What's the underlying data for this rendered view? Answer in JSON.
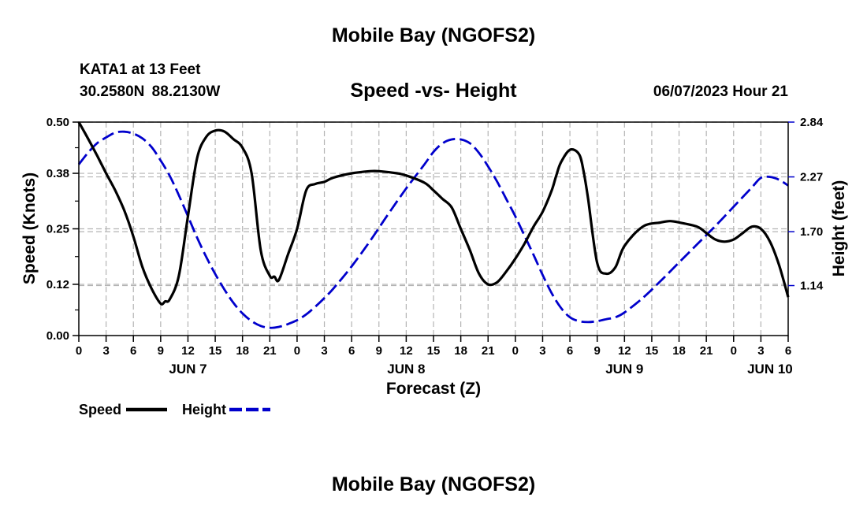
{
  "header": {
    "title": "Mobile Bay (NGOFS2)",
    "station": "KATA1 at 13 Feet",
    "latlon": "30.2580N  88.2130W",
    "datetime": "06/07/2023 Hour 21",
    "footer_title": "Mobile Bay (NGOFS2)"
  },
  "chart_data": {
    "type": "line",
    "title": "Speed -vs- Height",
    "xlabel": "Forecast (Z)",
    "ylabel": "Speed (Knots)",
    "y2label": "Height (feet)",
    "x_start_hour": 0,
    "x_end_hour": 78,
    "x_ticks": [
      {
        "hour": 0,
        "label": "0"
      },
      {
        "hour": 3,
        "label": "3"
      },
      {
        "hour": 6,
        "label": "6"
      },
      {
        "hour": 9,
        "label": "9"
      },
      {
        "hour": 12,
        "label": "12"
      },
      {
        "hour": 15,
        "label": "15"
      },
      {
        "hour": 18,
        "label": "18"
      },
      {
        "hour": 21,
        "label": "21"
      },
      {
        "hour": 24,
        "label": "0"
      },
      {
        "hour": 27,
        "label": "3"
      },
      {
        "hour": 30,
        "label": "6"
      },
      {
        "hour": 33,
        "label": "9"
      },
      {
        "hour": 36,
        "label": "12"
      },
      {
        "hour": 39,
        "label": "15"
      },
      {
        "hour": 42,
        "label": "18"
      },
      {
        "hour": 45,
        "label": "21"
      },
      {
        "hour": 48,
        "label": "0"
      },
      {
        "hour": 51,
        "label": "3"
      },
      {
        "hour": 54,
        "label": "6"
      },
      {
        "hour": 57,
        "label": "9"
      },
      {
        "hour": 60,
        "label": "12"
      },
      {
        "hour": 63,
        "label": "15"
      },
      {
        "hour": 66,
        "label": "18"
      },
      {
        "hour": 69,
        "label": "21"
      },
      {
        "hour": 72,
        "label": "0"
      },
      {
        "hour": 75,
        "label": "3"
      },
      {
        "hour": 78,
        "label": "6"
      }
    ],
    "date_labels": [
      {
        "hour": 12,
        "label": "JUN 7"
      },
      {
        "hour": 36,
        "label": "JUN 8"
      },
      {
        "hour": 60,
        "label": "JUN 9"
      },
      {
        "hour": 76,
        "label": "JUN 10"
      }
    ],
    "y_ticks": [
      0.0,
      0.12,
      0.25,
      0.38,
      0.5
    ],
    "y_tick_labels": [
      "0.00",
      "0.12",
      "0.25",
      "0.38",
      "0.50"
    ],
    "ylim": [
      0,
      0.5
    ],
    "y2_ticks": [
      1.14,
      1.7,
      2.27,
      2.84
    ],
    "y2_tick_labels": [
      "1.14",
      "1.70",
      "2.27",
      "2.84"
    ],
    "y2lim": [
      0.62,
      2.84
    ],
    "grid": true,
    "legend_position": "bottom-left",
    "series": [
      {
        "name": "Speed",
        "axis": "left",
        "color": "#000000",
        "style": "solid",
        "x": [
          0,
          1,
          2,
          3,
          4,
          5,
          6,
          7,
          8,
          9,
          9.5,
          10,
          11,
          12,
          13,
          14,
          15,
          16,
          17,
          18,
          19,
          20,
          21,
          21.5,
          22,
          23,
          24,
          25,
          26,
          27,
          28,
          30,
          32,
          33,
          35,
          36,
          38,
          39,
          40,
          41,
          42,
          43,
          44,
          45,
          46,
          47,
          48,
          49,
          50,
          51,
          52,
          52.5,
          53,
          54,
          55,
          55.5,
          56,
          57,
          58,
          59,
          60,
          62,
          64,
          65,
          66,
          68,
          69,
          70,
          71,
          72,
          73,
          74,
          75,
          76,
          77,
          78
        ],
        "values": [
          0.5,
          0.462,
          0.422,
          0.38,
          0.34,
          0.293,
          0.232,
          0.16,
          0.11,
          0.075,
          0.08,
          0.085,
          0.14,
          0.28,
          0.415,
          0.465,
          0.48,
          0.478,
          0.46,
          0.44,
          0.38,
          0.2,
          0.14,
          0.138,
          0.13,
          0.19,
          0.25,
          0.34,
          0.355,
          0.36,
          0.37,
          0.38,
          0.385,
          0.385,
          0.38,
          0.375,
          0.358,
          0.34,
          0.32,
          0.3,
          0.25,
          0.2,
          0.145,
          0.12,
          0.125,
          0.15,
          0.18,
          0.215,
          0.255,
          0.29,
          0.34,
          0.375,
          0.405,
          0.435,
          0.425,
          0.385,
          0.32,
          0.17,
          0.145,
          0.16,
          0.21,
          0.255,
          0.265,
          0.268,
          0.265,
          0.255,
          0.24,
          0.225,
          0.22,
          0.225,
          0.24,
          0.255,
          0.25,
          0.22,
          0.165,
          0.09
        ]
      },
      {
        "name": "Height",
        "axis": "right",
        "color": "#0000cc",
        "style": "dashed",
        "x": [
          0,
          1,
          2,
          3,
          4,
          5,
          6,
          7,
          8,
          9,
          10,
          11,
          12,
          13,
          14,
          15,
          16,
          17,
          18,
          19,
          20,
          21,
          22,
          23,
          24,
          25,
          26,
          27,
          28,
          30,
          32,
          34,
          36,
          38,
          39,
          40,
          41,
          42,
          43,
          44,
          45,
          46,
          47,
          48,
          49,
          50,
          51,
          52,
          53,
          54,
          55,
          56,
          57,
          58,
          59,
          60,
          62,
          64,
          66,
          68,
          70,
          72,
          74,
          75,
          76,
          77,
          78
        ],
        "values": [
          2.4,
          2.52,
          2.62,
          2.68,
          2.73,
          2.74,
          2.72,
          2.67,
          2.58,
          2.44,
          2.28,
          2.08,
          1.86,
          1.64,
          1.44,
          1.26,
          1.1,
          0.96,
          0.85,
          0.77,
          0.72,
          0.7,
          0.71,
          0.74,
          0.78,
          0.84,
          0.92,
          1.01,
          1.11,
          1.34,
          1.6,
          1.88,
          2.15,
          2.4,
          2.53,
          2.62,
          2.66,
          2.66,
          2.62,
          2.52,
          2.38,
          2.22,
          2.04,
          1.86,
          1.66,
          1.46,
          1.25,
          1.06,
          0.91,
          0.81,
          0.77,
          0.76,
          0.77,
          0.79,
          0.81,
          0.86,
          1.01,
          1.19,
          1.38,
          1.57,
          1.76,
          1.96,
          2.16,
          2.26,
          2.27,
          2.24,
          2.18
        ]
      }
    ]
  }
}
